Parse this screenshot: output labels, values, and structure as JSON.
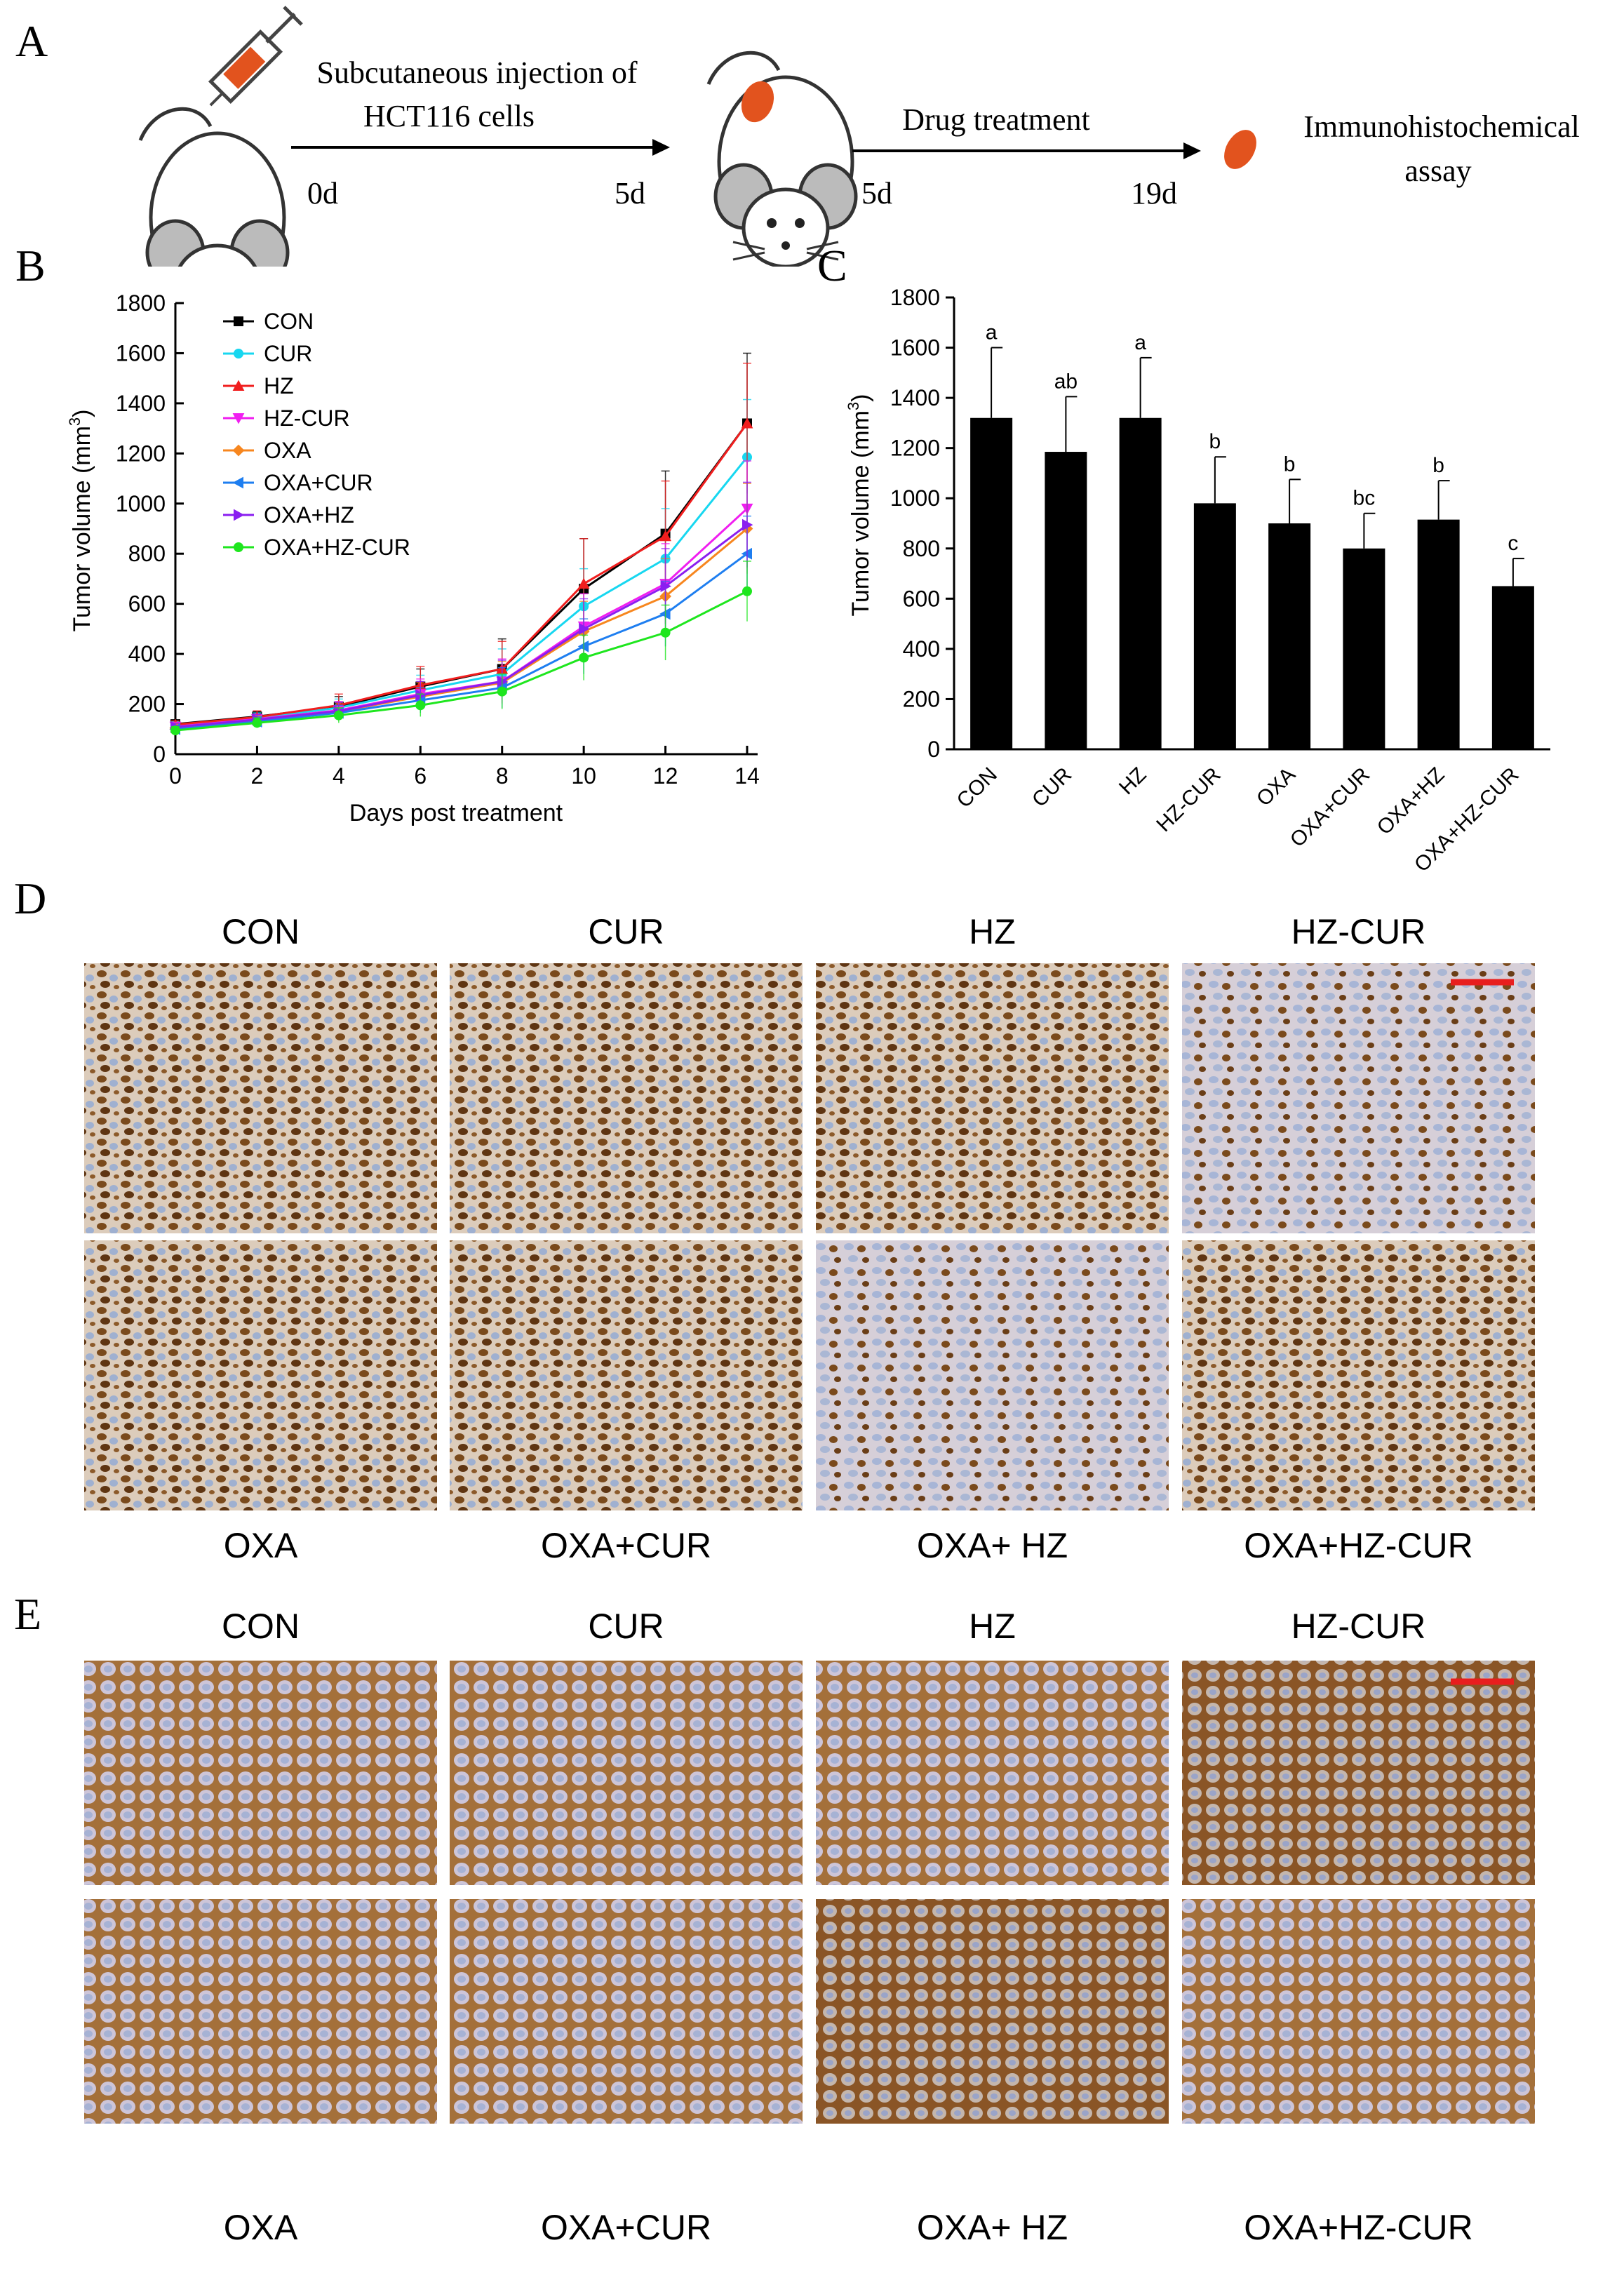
{
  "panel_a": {
    "letter": "A",
    "step1_line1": "Subcutaneous injection of",
    "step1_line2": "HCT116 cells",
    "step1_start": "0d",
    "step1_end": "5d",
    "step2_label": "Drug treatment",
    "step2_start": "5d",
    "step2_end": "19d",
    "final_line1": "Immunohistochemical",
    "final_line2": "assay",
    "tumor_color": "#e2531e",
    "syringe_color": "#e2531e"
  },
  "chart_data": [
    {
      "panel": "B",
      "type": "line",
      "xlabel": "Days post treatment",
      "ylabel": "Tumor volume (mm",
      "ylabel_sup": "3",
      "ylabel_close": ")",
      "x": [
        0,
        2,
        4,
        6,
        8,
        10,
        12,
        14
      ],
      "xlim": [
        0,
        14
      ],
      "ylim": [
        0,
        1800
      ],
      "yticks": [
        0,
        200,
        400,
        600,
        800,
        1000,
        1200,
        1400,
        1600,
        1800
      ],
      "xticks": [
        0,
        2,
        4,
        6,
        8,
        10,
        12,
        14
      ],
      "legend_position": "top-left",
      "series": [
        {
          "name": "CON",
          "color": "#000000",
          "marker": "square",
          "values": [
            120,
            150,
            190,
            270,
            340,
            660,
            880,
            1320
          ],
          "errors": [
            15,
            20,
            40,
            70,
            120,
            200,
            250,
            280
          ]
        },
        {
          "name": "CUR",
          "color": "#17d7f0",
          "marker": "circle",
          "values": [
            115,
            145,
            185,
            255,
            320,
            590,
            780,
            1185
          ],
          "errors": [
            15,
            20,
            35,
            60,
            100,
            150,
            200,
            230
          ]
        },
        {
          "name": "HZ",
          "color": "#f01e1e",
          "marker": "triangle-up",
          "values": [
            118,
            148,
            195,
            275,
            340,
            680,
            870,
            1320
          ],
          "errors": [
            15,
            25,
            45,
            75,
            110,
            180,
            220,
            240
          ]
        },
        {
          "name": "HZ-CUR",
          "color": "#f01ef0",
          "marker": "triangle-down",
          "values": [
            110,
            140,
            175,
            240,
            290,
            510,
            680,
            980
          ],
          "errors": [
            15,
            20,
            35,
            60,
            90,
            130,
            160,
            190
          ]
        },
        {
          "name": "OXA",
          "color": "#f7861e",
          "marker": "diamond",
          "values": [
            105,
            135,
            170,
            230,
            285,
            490,
            630,
            900
          ],
          "errors": [
            15,
            20,
            35,
            55,
            85,
            120,
            150,
            180
          ]
        },
        {
          "name": "OXA+CUR",
          "color": "#1e7ef0",
          "marker": "triangle-left",
          "values": [
            100,
            130,
            165,
            215,
            265,
            430,
            560,
            800
          ],
          "errors": [
            15,
            20,
            30,
            50,
            80,
            110,
            130,
            150
          ]
        },
        {
          "name": "OXA+HZ",
          "color": "#8a1ef0",
          "marker": "triangle-right",
          "values": [
            108,
            138,
            172,
            235,
            290,
            500,
            670,
            915
          ],
          "errors": [
            15,
            20,
            35,
            55,
            85,
            120,
            150,
            170
          ]
        },
        {
          "name": "OXA+HZ-CUR",
          "color": "#1ee61e",
          "marker": "circle",
          "values": [
            95,
            125,
            155,
            195,
            250,
            385,
            485,
            650
          ],
          "errors": [
            15,
            20,
            30,
            45,
            70,
            90,
            110,
            120
          ]
        }
      ]
    },
    {
      "panel": "C",
      "type": "bar",
      "ylabel": "Tumor volume (mm",
      "ylabel_sup": "3",
      "ylabel_close": ")",
      "categories": [
        "CON",
        "CUR",
        "HZ",
        "HZ-CUR",
        "OXA",
        "OXA+CUR",
        "OXA+HZ",
        "OXA+HZ-CUR"
      ],
      "values": [
        1320,
        1185,
        1320,
        980,
        900,
        800,
        915,
        650
      ],
      "errors": [
        280,
        220,
        240,
        185,
        175,
        140,
        155,
        110
      ],
      "significance": [
        "a",
        "ab",
        "a",
        "b",
        "b",
        "bc",
        "b",
        "c"
      ],
      "ylim": [
        0,
        1800
      ],
      "yticks": [
        0,
        200,
        400,
        600,
        800,
        1000,
        1200,
        1400,
        1600,
        1800
      ],
      "bar_color": "#000000"
    }
  ],
  "panel_b_letter": "B",
  "panel_c_letter": "C",
  "panel_d": {
    "letter": "D",
    "top_labels": [
      "CON",
      "CUR",
      "HZ",
      "HZ-CUR"
    ],
    "bottom_labels": [
      "OXA",
      "OXA+CUR",
      "OXA+ HZ",
      "OXA+HZ-CUR"
    ],
    "stain_color": "#7a4a1c",
    "background_color": "#d9c9b8",
    "scale_bar_color": "#e81e1e"
  },
  "panel_e": {
    "letter": "E",
    "top_labels": [
      "CON",
      "CUR",
      "HZ",
      "HZ-CUR"
    ],
    "bottom_labels": [
      "OXA",
      "OXA+CUR",
      "OXA+ HZ",
      "OXA+HZ-CUR"
    ],
    "stain_color": "#a4703a",
    "background_color": "#cfc6cf",
    "scale_bar_color": "#e81e1e"
  }
}
